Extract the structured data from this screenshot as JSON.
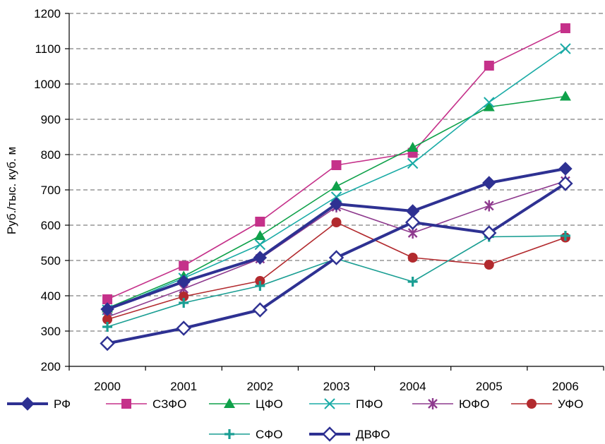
{
  "chart_data": {
    "type": "line",
    "ylabel": "Руб./тыс. куб. м",
    "xlabel": "",
    "title": "",
    "x": [
      "2000",
      "2001",
      "2002",
      "2003",
      "2004",
      "2005",
      "2006"
    ],
    "ylim": [
      200,
      1200
    ],
    "yticks": [
      200,
      300,
      400,
      500,
      600,
      700,
      800,
      900,
      1000,
      1100,
      1200
    ],
    "grid": "horizontal dashed",
    "legend_position": "bottom",
    "series": [
      {
        "name": "РФ",
        "values": [
          362,
          440,
          508,
          660,
          640,
          720,
          760
        ],
        "color": "#2e3192",
        "marker": "diamond-filled",
        "thick": true
      },
      {
        "name": "СЗФО",
        "values": [
          390,
          485,
          610,
          770,
          805,
          1052,
          1158
        ],
        "color": "#c5318a",
        "marker": "square",
        "thick": false
      },
      {
        "name": "ЦФО",
        "values": [
          365,
          455,
          570,
          710,
          820,
          935,
          965
        ],
        "color": "#0fa14a",
        "marker": "triangle",
        "thick": false
      },
      {
        "name": "ПФО",
        "values": [
          360,
          450,
          545,
          680,
          775,
          948,
          1100
        ],
        "color": "#1aaba6",
        "marker": "x",
        "thick": false
      },
      {
        "name": "ЮФО",
        "values": [
          340,
          420,
          505,
          652,
          578,
          655,
          725
        ],
        "color": "#8e3a8e",
        "marker": "asterisk",
        "thick": false
      },
      {
        "name": "УФО",
        "values": [
          333,
          398,
          442,
          608,
          508,
          488,
          565
        ],
        "color": "#b22a2e",
        "marker": "circle",
        "thick": false
      },
      {
        "name": "СФО",
        "values": [
          312,
          380,
          428,
          505,
          440,
          567,
          570
        ],
        "color": "#1a9e93",
        "marker": "plus",
        "thick": false
      },
      {
        "name": "ДВФО",
        "values": [
          265,
          308,
          360,
          508,
          608,
          578,
          718
        ],
        "color": "#2e3192",
        "marker": "diamond-open",
        "thick": true
      }
    ]
  }
}
